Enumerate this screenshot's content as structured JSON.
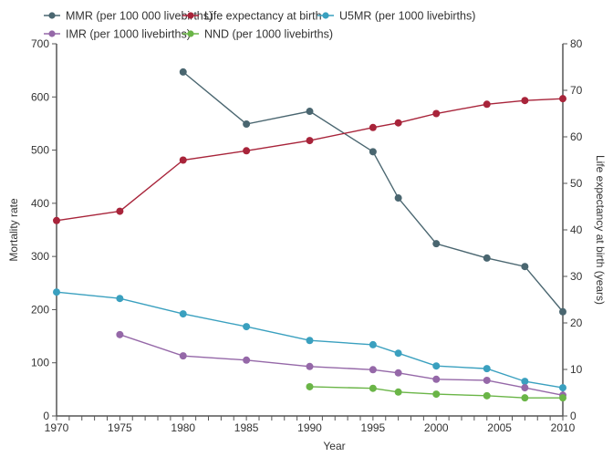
{
  "chart_data": {
    "type": "line",
    "title": "",
    "xlabel": "Year",
    "ylabel": "Mortality rate",
    "y2label": "Life expectancy at birth (years)",
    "xlim": [
      1970,
      2010
    ],
    "ylim": [
      0,
      700
    ],
    "y2lim": [
      0,
      80
    ],
    "x_ticks": [
      1970,
      1975,
      1980,
      1985,
      1990,
      1995,
      2000,
      2005,
      2010
    ],
    "x_ticks_minor_step": 1,
    "y_ticks": [
      0,
      100,
      200,
      300,
      400,
      500,
      600,
      700
    ],
    "y2_ticks": [
      0,
      10,
      20,
      30,
      40,
      50,
      60,
      70,
      80
    ],
    "grid": false,
    "legend_position": "top",
    "series": [
      {
        "name": "MMR (per 100 000 livebirths)",
        "axis": "left",
        "color": "#4a6670",
        "x": [
          1980,
          1985,
          1990,
          1995,
          1997,
          2000,
          2004,
          2007,
          2010
        ],
        "values": [
          647,
          549,
          573,
          497,
          410,
          324,
          297,
          281,
          196
        ]
      },
      {
        "name": "Life expectancy at birth",
        "axis": "right",
        "color": "#a8243a",
        "x": [
          1970,
          1975,
          1980,
          1985,
          1990,
          1995,
          1997,
          2000,
          2004,
          2007,
          2010
        ],
        "values": [
          42,
          44,
          55,
          57,
          59.2,
          62,
          63,
          65,
          67,
          67.8,
          68.2
        ]
      },
      {
        "name": "U5MR (per 1000 livebirths)",
        "axis": "left",
        "color": "#3aa0bf",
        "x": [
          1970,
          1975,
          1980,
          1985,
          1990,
          1995,
          1997,
          2000,
          2004,
          2007,
          2010
        ],
        "values": [
          233,
          221,
          192,
          168,
          142,
          134,
          118,
          94,
          89,
          65,
          53
        ]
      },
      {
        "name": "IMR (per 1000 livebirths)",
        "axis": "left",
        "color": "#9568a8",
        "x": [
          1975,
          1980,
          1985,
          1990,
          1995,
          1997,
          2000,
          2004,
          2007,
          2010
        ],
        "values": [
          153,
          113,
          105,
          93,
          87,
          81,
          69,
          67,
          53,
          39
        ]
      },
      {
        "name": "NND (per 1000 livebirths)",
        "axis": "left",
        "color": "#6ab547",
        "x": [
          1990,
          1995,
          1997,
          2000,
          2004,
          2007,
          2010
        ],
        "values": [
          55,
          52,
          45,
          41,
          38,
          34,
          34
        ]
      }
    ],
    "legend_order": [
      0,
      1,
      2,
      3,
      4
    ]
  }
}
